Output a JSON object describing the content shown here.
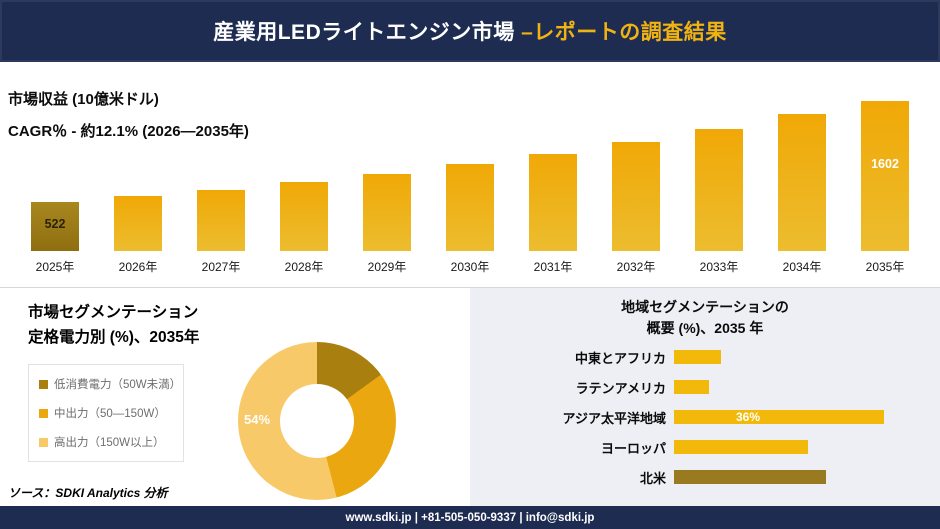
{
  "header": {
    "title_main": "産業用LEDライトエンジン市場 ",
    "title_accent": "–レポートの調査結果"
  },
  "colors": {
    "navy": "#1e2c52",
    "accent_yellow": "#f0b310",
    "bar_gradient": "linear-gradient(180deg,#f0a806,#ecbd2f)",
    "first_bar_gradient": "linear-gradient(180deg,#a8871f,#8f6e10)",
    "right_panel_bg": "#edeff4"
  },
  "chart_data": [
    {
      "type": "bar",
      "title": "市場収益 (10億米ドル)",
      "subtitle": "CAGR％ - 約12.1% (2026―2035年)",
      "categories": [
        "2025年",
        "2026年",
        "2027年",
        "2028年",
        "2029年",
        "2030年",
        "2031年",
        "2032年",
        "2033年",
        "2034年",
        "2035年"
      ],
      "values": [
        522,
        585,
        656,
        735,
        824,
        924,
        1036,
        1161,
        1301,
        1459,
        1602
      ],
      "value_labels_shown": {
        "0": "522",
        "10": "1602"
      },
      "ylim": [
        0,
        1602
      ],
      "legend_position": "none",
      "grid": false
    },
    {
      "type": "pie",
      "donut": true,
      "title": "市場セグメンテーション 定格電力別 (%)、2035年",
      "slices": [
        {
          "label": "低消費電力（50W未満）",
          "value": 15,
          "color": "#a97f10"
        },
        {
          "label": "中出力（50―150W）",
          "value": 31,
          "color": "#eaa70f"
        },
        {
          "label": "高出力（150W以上）",
          "value": 54,
          "color": "#f8c968"
        }
      ],
      "shown_label": "54%",
      "legend_position": "left"
    },
    {
      "type": "bar",
      "orientation": "horizontal",
      "title": "地域セグメンテーションの概要 (%)、2035 年",
      "categories": [
        "中東とアフリカ",
        "ラテンアメリカ",
        "アジア太平洋地域",
        "ヨーロッパ",
        "北米"
      ],
      "values": [
        8,
        6,
        36,
        23,
        26
      ],
      "xmax": 36,
      "colors": [
        "#f3b90a",
        "#f3b90a",
        "#f3b90a",
        "#f3b90a",
        "#9a7a20"
      ],
      "value_labels_shown": {
        "2": "36%"
      },
      "grid": false
    }
  ],
  "segmentation": {
    "title_line1": "市場セグメンテーション",
    "title_line2": "定格電力別 (%)、2035年",
    "source": "ソース：SDKI Analytics 分析"
  },
  "regional": {
    "title_line1": "地域セグメンテーションの",
    "title_line2": "概要 (%)、2035 年"
  },
  "footer": {
    "text": "www.sdki.jp | +81-505-050-9337 | info@sdki.jp"
  }
}
